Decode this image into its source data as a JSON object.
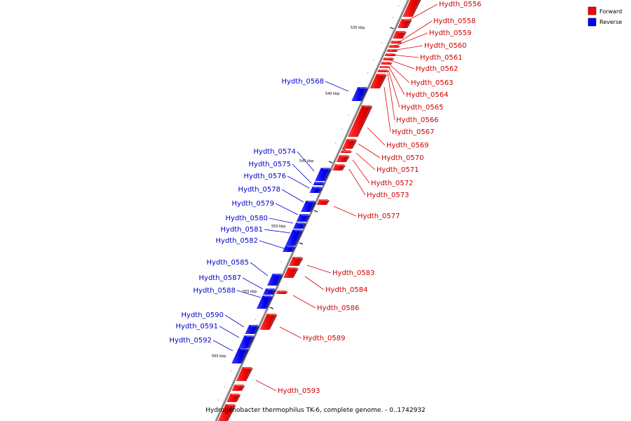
{
  "title": "Hydrogenobacter thermophilus TK-6, complete genome. - 0..1742932",
  "legend": [
    {
      "label": "Forward",
      "color": "#ff0000"
    },
    {
      "label": "Reverse",
      "color": "#0000ff"
    }
  ],
  "colors": {
    "forward": "#ff0000",
    "reverse": "#0000ff",
    "backbone": "#888888"
  },
  "ticks": [
    "535 kbp",
    "540 kbp",
    "545 kbp",
    "550 kbp",
    "555 kbp",
    "560 kbp"
  ],
  "forward_labels": [
    "Hydth_0556",
    "Hydth_0558",
    "Hydth_0559",
    "Hydth_0560",
    "Hydth_0561",
    "Hydth_0562",
    "Hydth_0563",
    "Hydth_0564",
    "Hydth_0565",
    "Hydth_0566",
    "Hydth_0567",
    "Hydth_0569",
    "Hydth_0570",
    "Hydth_0571",
    "Hydth_0572",
    "Hydth_0573",
    "Hydth_0577",
    "Hydth_0583",
    "Hydth_0584",
    "Hydth_0586",
    "Hydth_0589",
    "Hydth_0593"
  ],
  "reverse_labels": [
    "Hydth_0568",
    "Hydth_0574",
    "Hydth_0575",
    "Hydth_0576",
    "Hydth_0578",
    "Hydth_0579",
    "Hydth_0580",
    "Hydth_0581",
    "Hydth_0582",
    "Hydth_0585",
    "Hydth_0587",
    "Hydth_0588",
    "Hydth_0590",
    "Hydth_0591",
    "Hydth_0592"
  ]
}
